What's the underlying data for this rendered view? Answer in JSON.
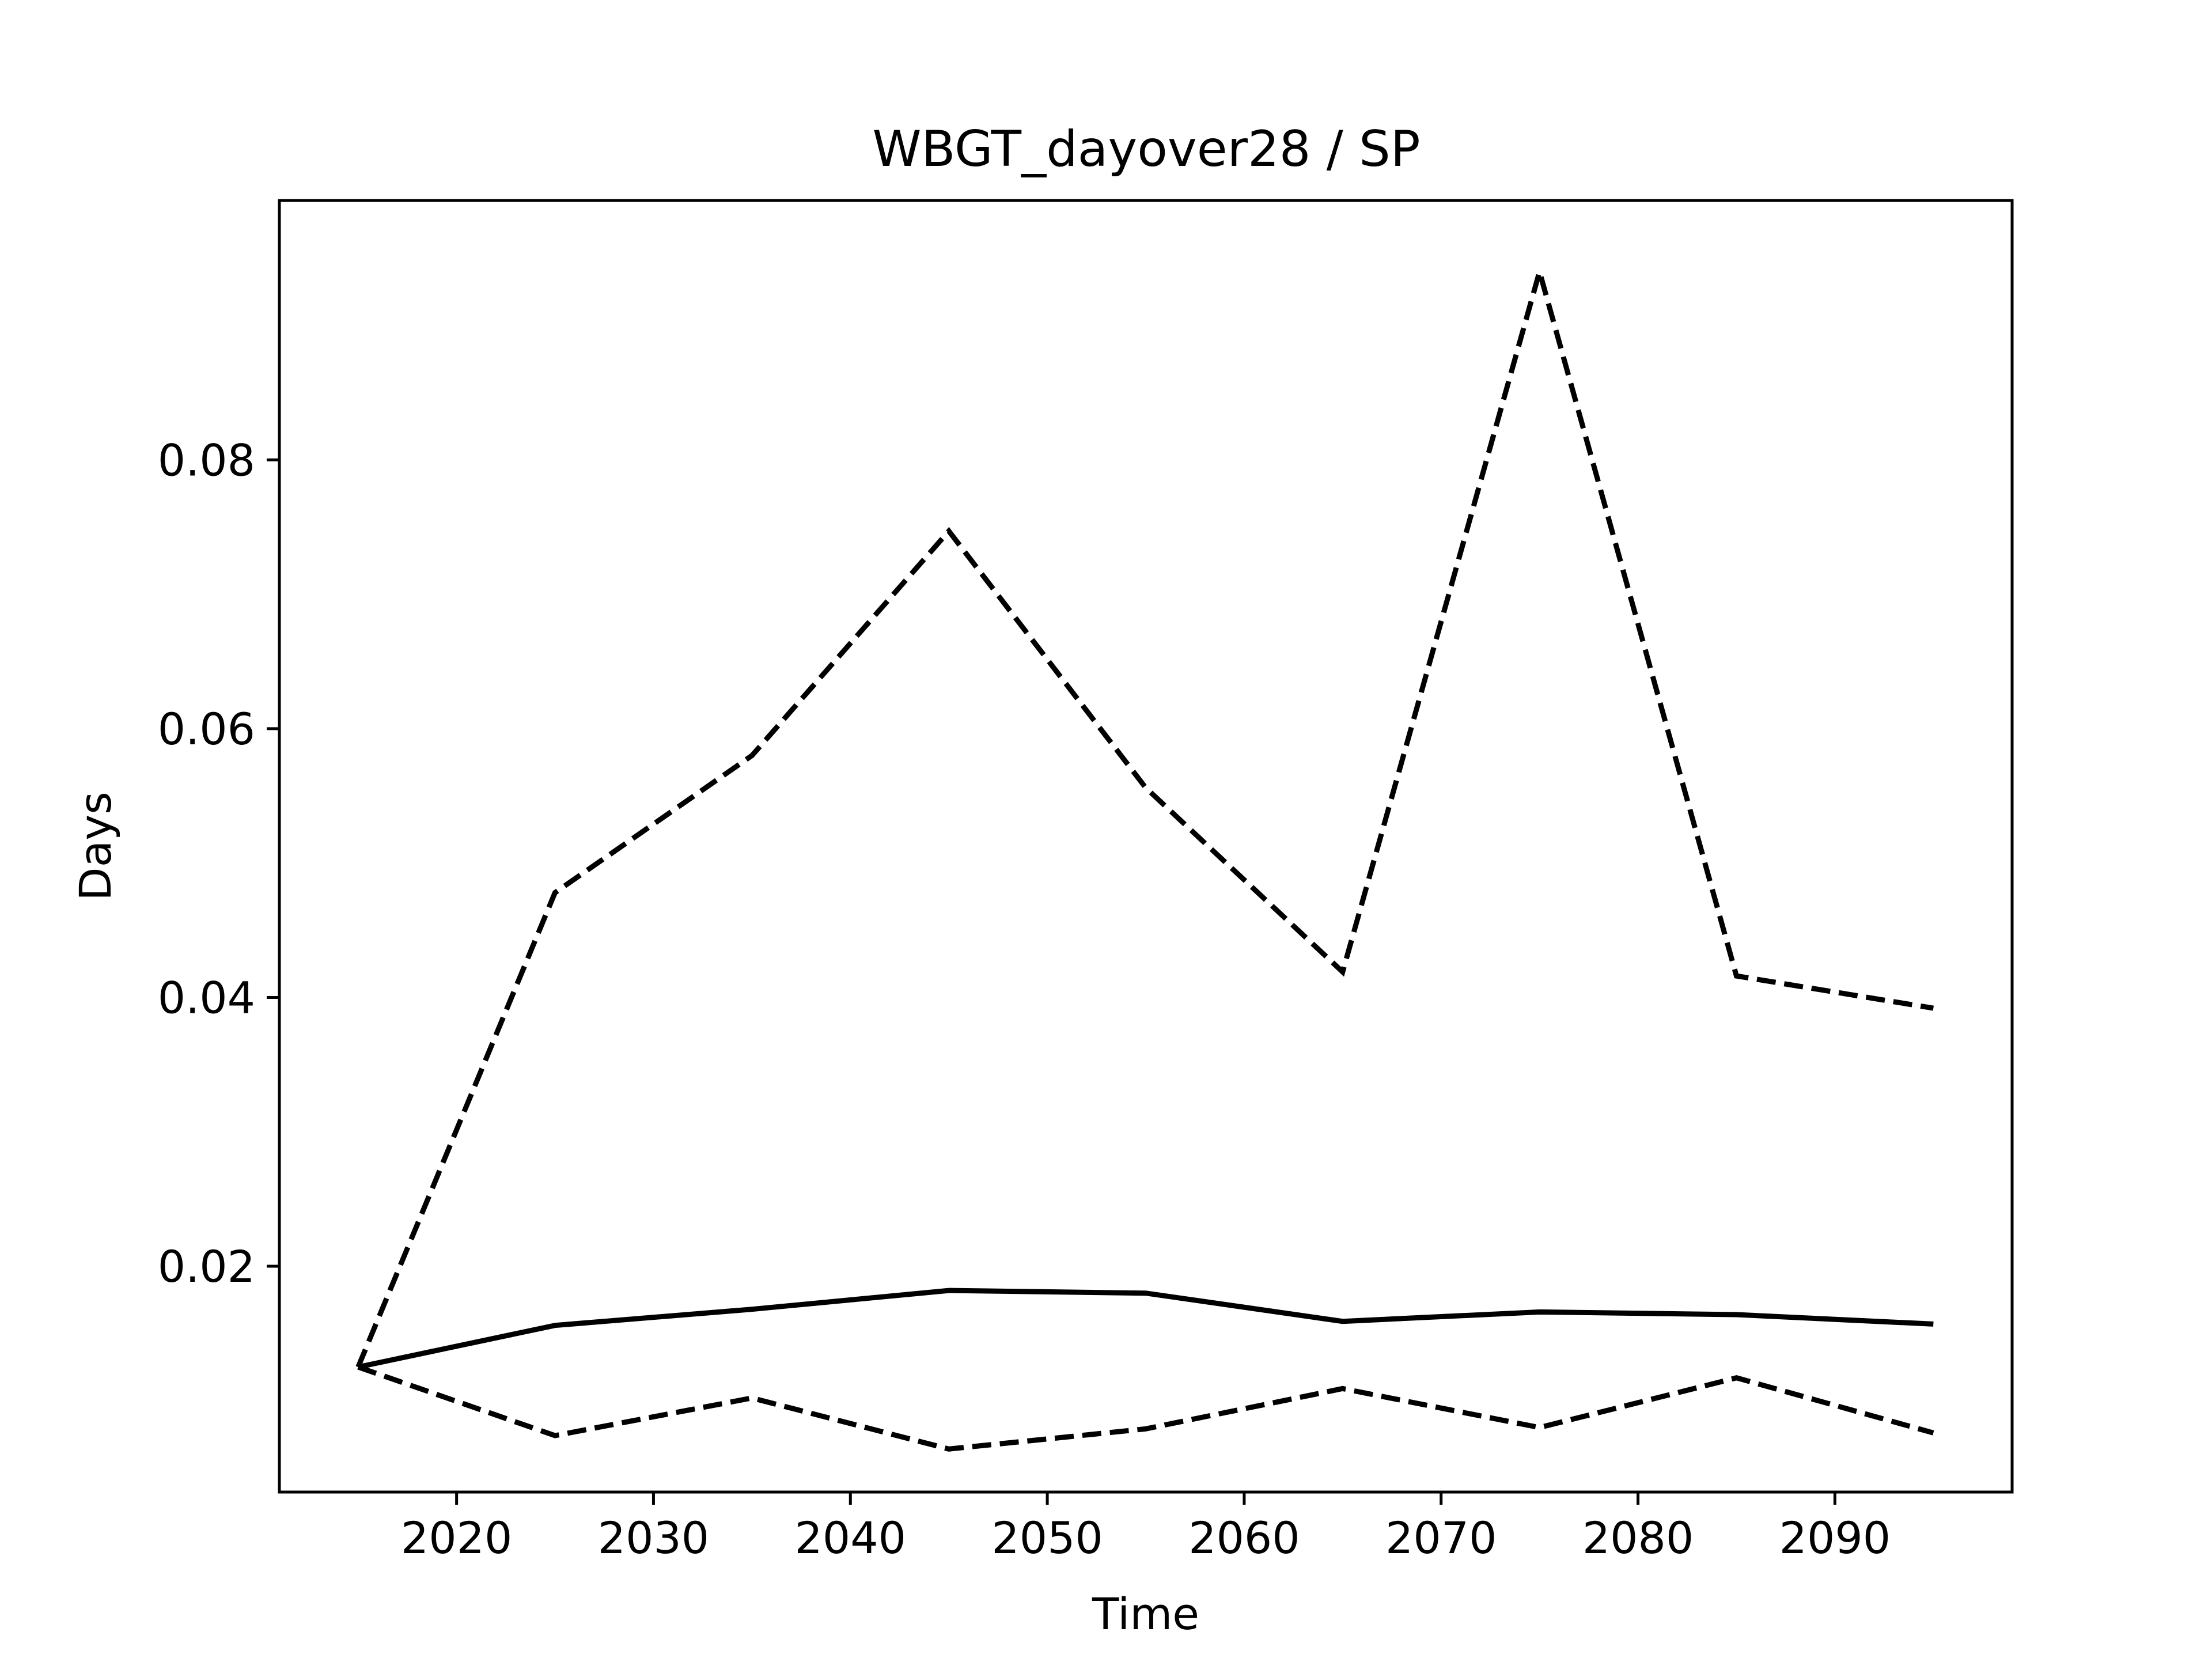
{
  "chart_data": {
    "type": "line",
    "title": "WBGT_dayover28 / SP",
    "xlabel": "Time",
    "ylabel": "Days",
    "xlim": [
      2011,
      2099
    ],
    "ylim": [
      0.0032,
      0.0993
    ],
    "xticks": [
      2020,
      2030,
      2040,
      2050,
      2060,
      2070,
      2080,
      2090
    ],
    "yticks": [
      0.02,
      0.04,
      0.06,
      0.08
    ],
    "ytick_labels": [
      "0.02",
      "0.04",
      "0.06",
      "0.08"
    ],
    "grid": false,
    "x": [
      2015,
      2025,
      2035,
      2045,
      2055,
      2065,
      2075,
      2085,
      2095
    ],
    "series": [
      {
        "style": "solid",
        "color": "#000000",
        "values": [
          0.0125,
          0.0156,
          0.0168,
          0.0182,
          0.018,
          0.0159,
          0.0166,
          0.0164,
          0.0157
        ]
      },
      {
        "style": "dashed",
        "color": "#000000",
        "values": [
          0.0125,
          0.0478,
          0.058,
          0.0747,
          0.0556,
          0.0419,
          0.094,
          0.0416,
          0.0392
        ]
      },
      {
        "style": "dashed",
        "color": "#000000",
        "values": [
          0.0125,
          0.0074,
          0.0102,
          0.0064,
          0.0079,
          0.0109,
          0.008,
          0.0117,
          0.0076
        ]
      }
    ]
  }
}
